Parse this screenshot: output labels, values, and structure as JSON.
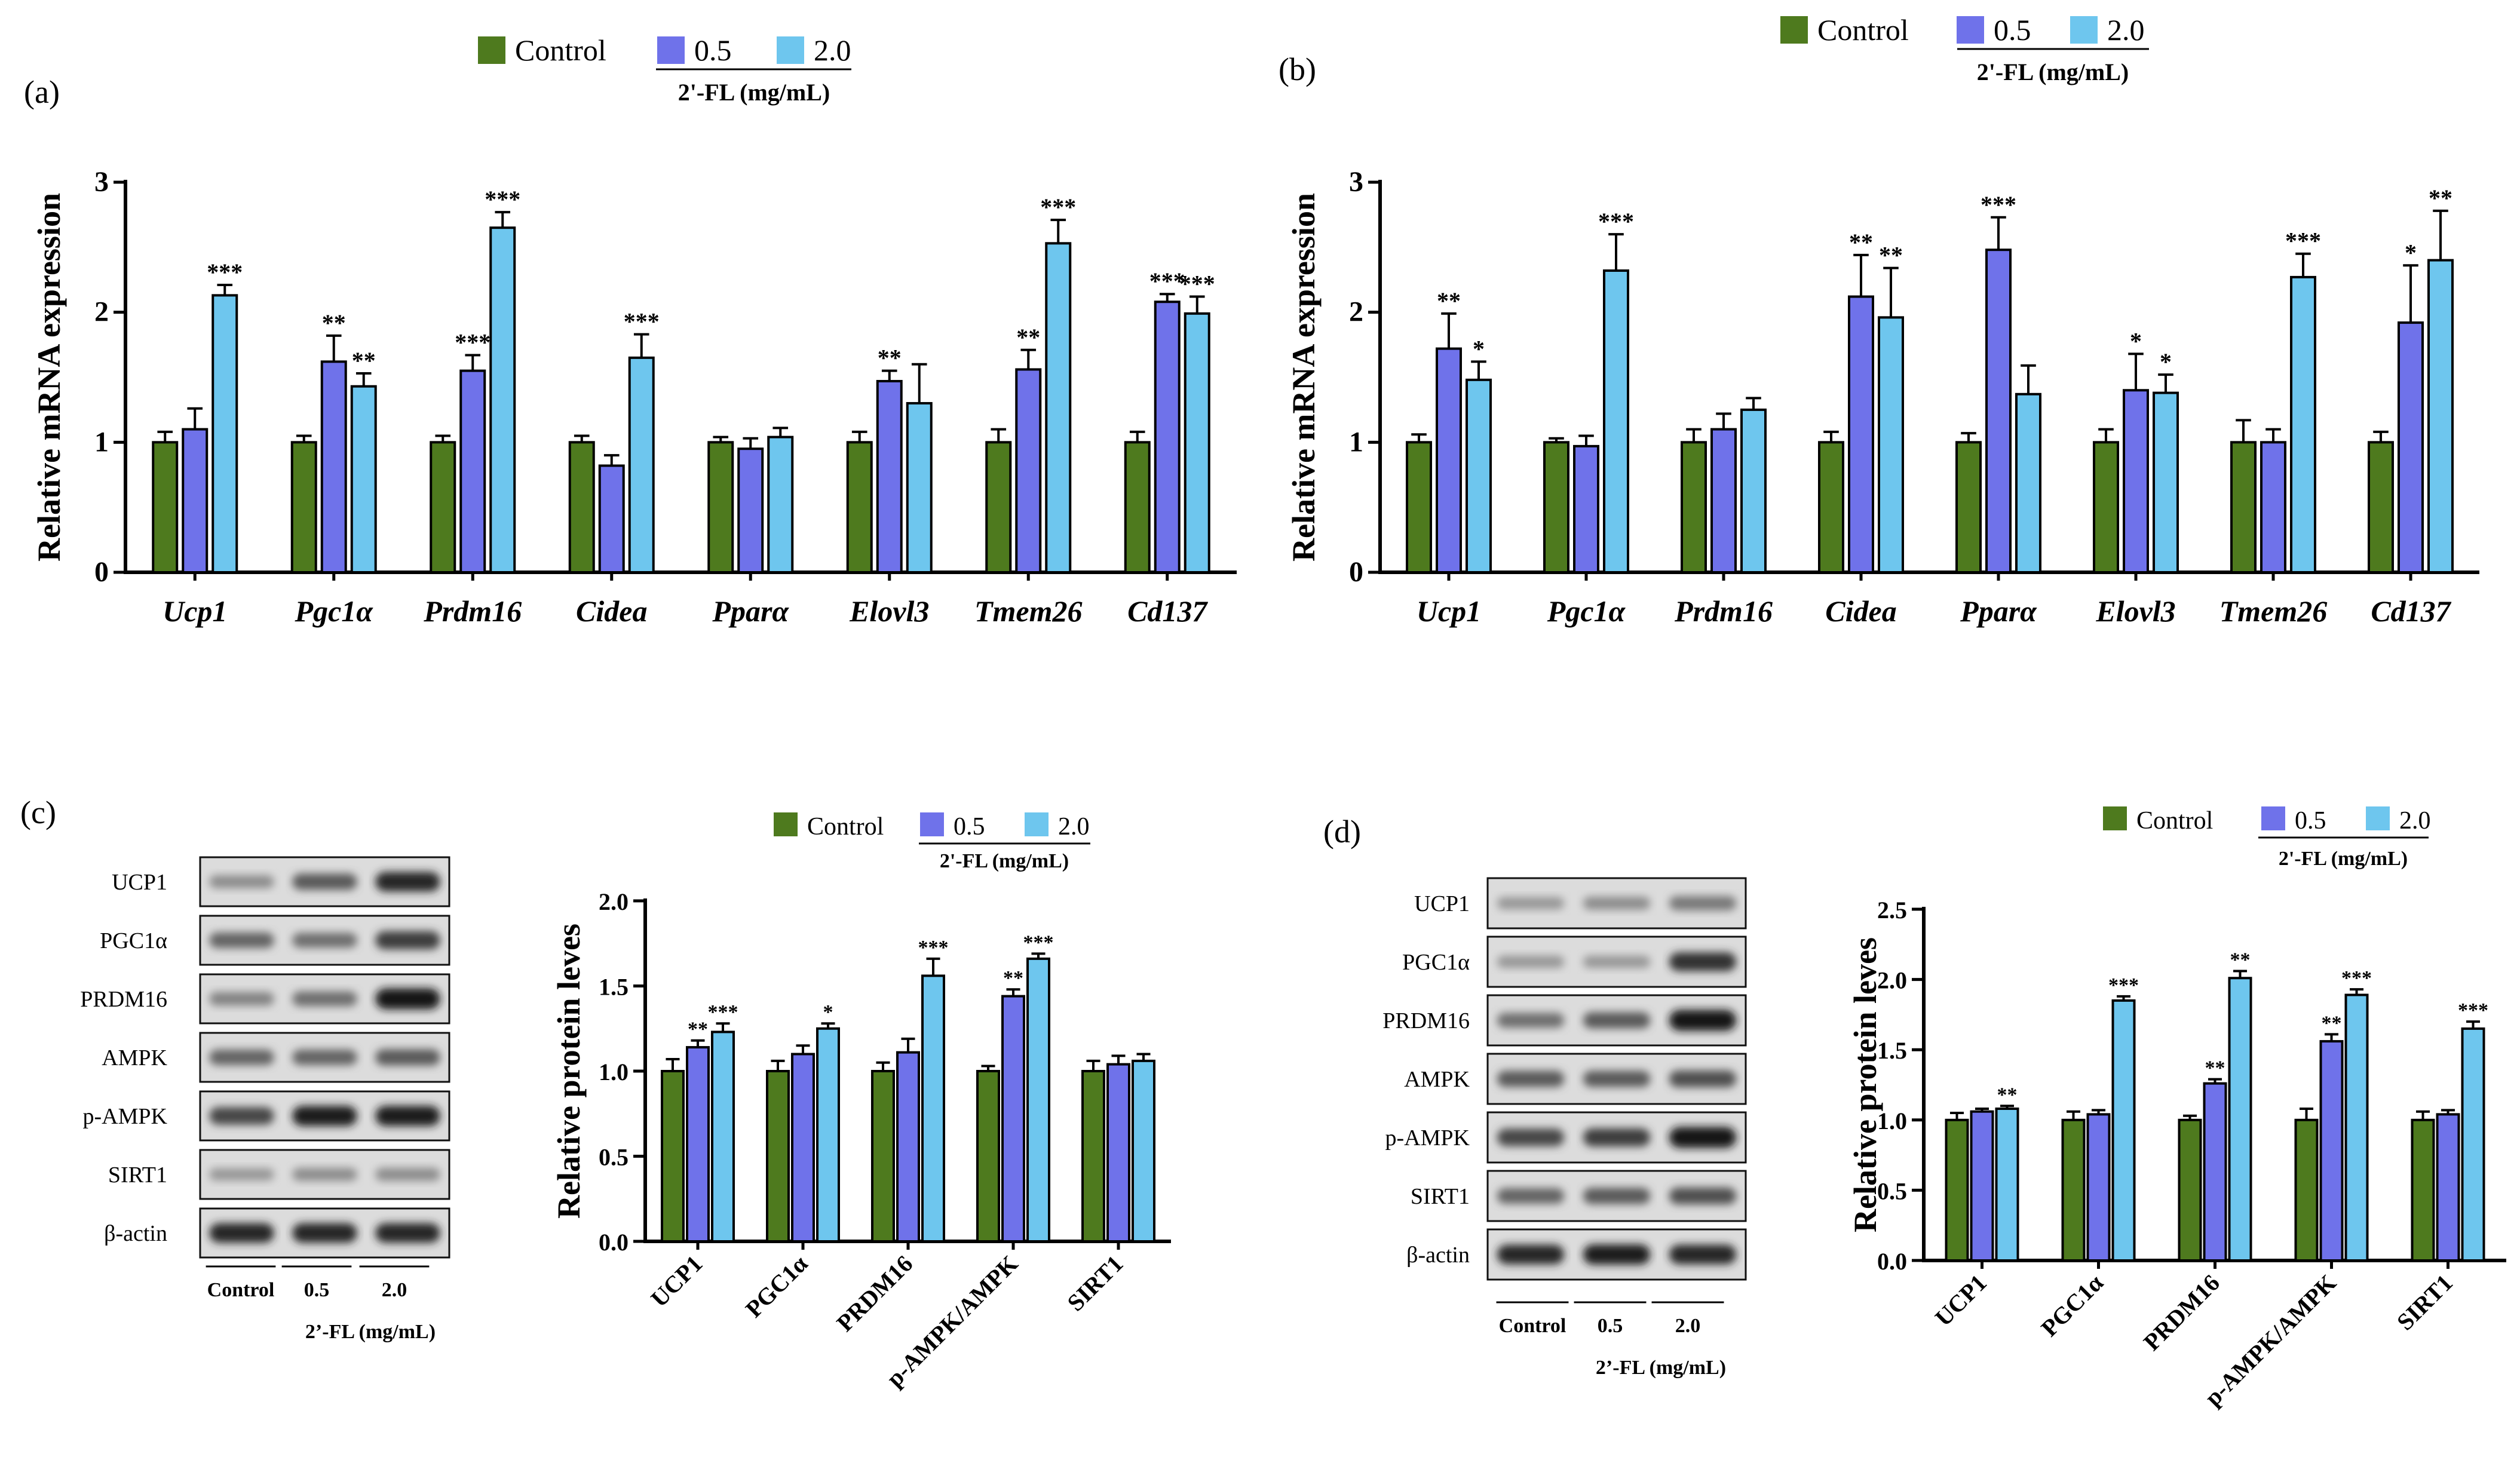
{
  "colors": {
    "control": "#4e7a1e",
    "low": "#6f72ea",
    "high": "#6ec6ee",
    "error": "#000000"
  },
  "chart_data": [
    {
      "panel": "(a)",
      "type": "bar",
      "ylabel": "Relative mRNA expression",
      "ylim": [
        0,
        3
      ],
      "yticks": [
        "0",
        "1",
        "2",
        "3"
      ],
      "categories": [
        "Ucp1",
        "Pgc1α",
        "Prdm16",
        "Cidea",
        "Pparα",
        "Elovl3",
        "Tmem26",
        "Cd137"
      ],
      "legend": {
        "entries": [
          "Control",
          "0.5",
          "2.0"
        ],
        "title": "2'-FL (mg/mL)"
      },
      "series": [
        {
          "name": "Control",
          "values": [
            1.0,
            1.0,
            1.0,
            1.0,
            1.0,
            1.0,
            1.0,
            1.0
          ],
          "errors": [
            0.08,
            0.05,
            0.05,
            0.05,
            0.04,
            0.08,
            0.1,
            0.08
          ],
          "sig": [
            "",
            "",
            "",
            "",
            "",
            "",
            "",
            ""
          ]
        },
        {
          "name": "0.5",
          "values": [
            1.1,
            1.62,
            1.55,
            0.82,
            0.95,
            1.47,
            1.56,
            2.08
          ],
          "errors": [
            0.16,
            0.2,
            0.12,
            0.08,
            0.08,
            0.08,
            0.15,
            0.06
          ],
          "sig": [
            "",
            "**",
            "***",
            "",
            "",
            "**",
            "**",
            "***"
          ]
        },
        {
          "name": "2.0",
          "values": [
            2.13,
            1.43,
            2.65,
            1.65,
            1.04,
            1.3,
            2.53,
            1.99
          ],
          "errors": [
            0.08,
            0.1,
            0.12,
            0.18,
            0.07,
            0.3,
            0.18,
            0.13
          ],
          "sig": [
            "***",
            "**",
            "***",
            "***",
            "",
            "",
            "***",
            "***"
          ]
        }
      ]
    },
    {
      "panel": "(b)",
      "type": "bar",
      "ylabel": "Relative mRNA expression",
      "ylim": [
        0,
        3
      ],
      "yticks": [
        "0",
        "1",
        "2",
        "3"
      ],
      "categories": [
        "Ucp1",
        "Pgc1α",
        "Prdm16",
        "Cidea",
        "Pparα",
        "Elovl3",
        "Tmem26",
        "Cd137"
      ],
      "legend": {
        "entries": [
          "Control",
          "0.5",
          "2.0"
        ],
        "title": "2'-FL (mg/mL)"
      },
      "series": [
        {
          "name": "Control",
          "values": [
            1.0,
            1.0,
            1.0,
            1.0,
            1.0,
            1.0,
            1.0,
            1.0
          ],
          "errors": [
            0.06,
            0.03,
            0.1,
            0.08,
            0.07,
            0.1,
            0.17,
            0.08
          ],
          "sig": [
            "",
            "",
            "",
            "",
            "",
            "",
            "",
            ""
          ]
        },
        {
          "name": "0.5",
          "values": [
            1.72,
            0.97,
            1.1,
            2.12,
            2.48,
            1.4,
            1.0,
            1.92
          ],
          "errors": [
            0.27,
            0.08,
            0.12,
            0.32,
            0.25,
            0.28,
            0.1,
            0.44
          ],
          "sig": [
            "**",
            "",
            "",
            "**",
            "***",
            "*",
            "",
            "*"
          ]
        },
        {
          "name": "2.0",
          "values": [
            1.48,
            2.32,
            1.25,
            1.96,
            1.37,
            1.38,
            2.27,
            2.4
          ],
          "errors": [
            0.14,
            0.28,
            0.09,
            0.38,
            0.22,
            0.14,
            0.18,
            0.38
          ],
          "sig": [
            "*",
            "***",
            "",
            "**",
            "",
            "*",
            "***",
            "**"
          ]
        }
      ]
    },
    {
      "panel": "(c)",
      "type": "bar",
      "ylabel": "Relative protein leves",
      "ylim": [
        0,
        2.0
      ],
      "yticks": [
        "0.0",
        "0.5",
        "1.0",
        "1.5",
        "2.0"
      ],
      "categories": [
        "UCP1",
        "PGC1α",
        "PRDM16",
        "p-AMPK/AMPK",
        "SIRT1"
      ],
      "legend": {
        "entries": [
          "Control",
          "0.5",
          "2.0"
        ],
        "title": "2'-FL (mg/mL)"
      },
      "series": [
        {
          "name": "Control",
          "values": [
            1.0,
            1.0,
            1.0,
            1.0,
            1.0
          ],
          "errors": [
            0.07,
            0.06,
            0.05,
            0.03,
            0.06
          ],
          "sig": [
            "",
            "",
            "",
            "",
            ""
          ]
        },
        {
          "name": "0.5",
          "values": [
            1.14,
            1.1,
            1.11,
            1.44,
            1.04
          ],
          "errors": [
            0.04,
            0.05,
            0.08,
            0.04,
            0.05
          ],
          "sig": [
            "**",
            "",
            "",
            "**",
            ""
          ]
        },
        {
          "name": "2.0",
          "values": [
            1.23,
            1.25,
            1.56,
            1.66,
            1.06
          ],
          "errors": [
            0.05,
            0.03,
            0.1,
            0.03,
            0.04
          ],
          "sig": [
            "***",
            "*",
            "***",
            "***",
            ""
          ]
        }
      ]
    },
    {
      "panel": "(d)",
      "type": "bar",
      "ylabel": "Relative protein leves",
      "ylim": [
        0,
        2.5
      ],
      "yticks": [
        "0.0",
        "0.5",
        "1.0",
        "1.5",
        "2.0",
        "2.5"
      ],
      "categories": [
        "UCP1",
        "PGC1α",
        "PRDM16",
        "p-AMPK/AMPK",
        "SIRT1"
      ],
      "legend": {
        "entries": [
          "Control",
          "0.5",
          "2.0"
        ],
        "title": "2'-FL (mg/mL)"
      },
      "series": [
        {
          "name": "Control",
          "values": [
            1.0,
            1.0,
            1.0,
            1.0,
            1.0
          ],
          "errors": [
            0.05,
            0.06,
            0.03,
            0.08,
            0.06
          ],
          "sig": [
            "",
            "",
            "",
            "",
            ""
          ]
        },
        {
          "name": "0.5",
          "values": [
            1.06,
            1.04,
            1.26,
            1.56,
            1.04
          ],
          "errors": [
            0.02,
            0.03,
            0.03,
            0.05,
            0.03
          ],
          "sig": [
            "",
            "",
            "**",
            "**",
            ""
          ]
        },
        {
          "name": "2.0",
          "values": [
            1.08,
            1.85,
            2.01,
            1.89,
            1.65
          ],
          "errors": [
            0.02,
            0.03,
            0.05,
            0.04,
            0.05
          ],
          "sig": [
            "**",
            "***",
            "**",
            "***",
            "***"
          ]
        }
      ]
    }
  ],
  "blots": [
    {
      "panel": "(c)",
      "labels": [
        "UCP1",
        "PGC1α",
        "PRDM16",
        "AMPK",
        "p-AMPK",
        "SIRT1",
        "β-actin"
      ],
      "lanes": [
        "Control",
        "0.5",
        "2.0"
      ],
      "xlabel": "2’-FL (mg/mL)"
    },
    {
      "panel": "(d)",
      "labels": [
        "UCP1",
        "PGC1α",
        "PRDM16",
        "AMPK",
        "p-AMPK",
        "SIRT1",
        "β-actin"
      ],
      "lanes": [
        "Control",
        "0.5",
        "2.0"
      ],
      "xlabel": "2’-FL (mg/mL)"
    }
  ]
}
